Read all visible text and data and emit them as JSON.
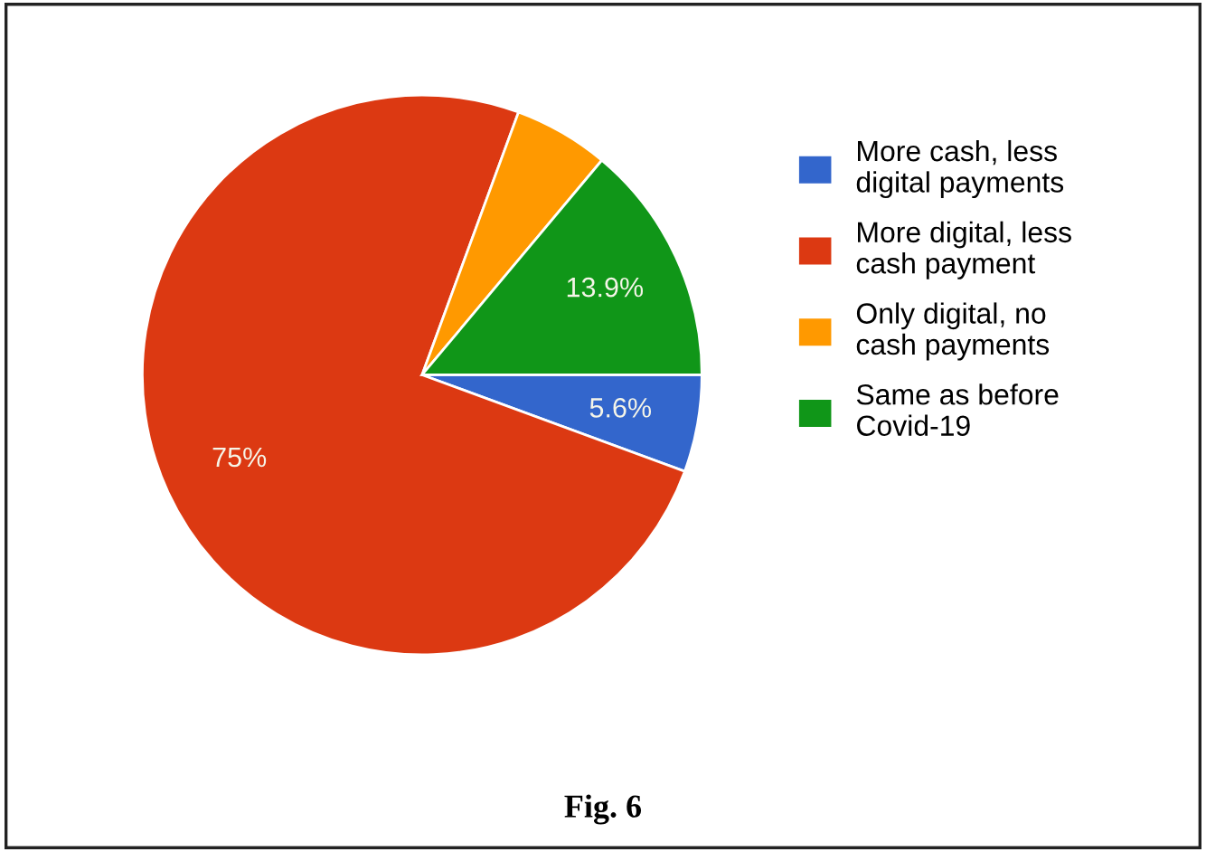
{
  "chart_data": {
    "type": "pie",
    "categories": [
      "More cash, less digital payments",
      "More digital, less cash payment",
      "Only digital, no cash payments",
      "Same as before Covid-19"
    ],
    "values": [
      5.6,
      75,
      5.5,
      13.9
    ],
    "value_labels": [
      "5.6%",
      "75%",
      null,
      "13.9%"
    ],
    "colors": [
      "#3366cc",
      "#dc3912",
      "#ff9900",
      "#109618"
    ],
    "legend": "right",
    "annotations": [
      "Fig. 6"
    ]
  }
}
